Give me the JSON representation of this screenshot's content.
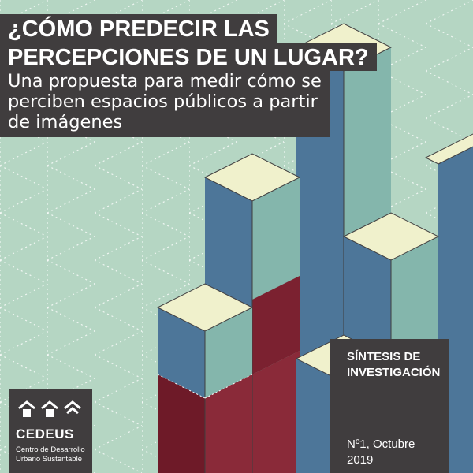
{
  "cover": {
    "title_lines": [
      "¿CÓMO PREDECIR LAS",
      "PERCEPCIONES DE UN LUGAR?"
    ],
    "subtitle_lines": [
      "Una propuesta para medir cómo se",
      "perciben espacios públicos a partir",
      "de imágenes"
    ]
  },
  "series": {
    "title_lines": [
      "SÍNTESIS DE",
      "INVESTIGACIÓN"
    ],
    "issue_lines": [
      "Nº1, Octubre",
      "2019"
    ]
  },
  "logo": {
    "name": "CEDEUS",
    "tagline_lines": [
      "Centro de Desarrollo",
      "Urbano Sustentable"
    ]
  },
  "colors": {
    "background": "#b5d6c3",
    "panel": "#403d3e",
    "cube_top": "#f0f1cc",
    "cube_blue": "#4d7699",
    "cube_teal": "#84b6ac",
    "cube_red": "#7b2130"
  },
  "icons": [
    "house-icon",
    "house-icon",
    "house-icon"
  ]
}
